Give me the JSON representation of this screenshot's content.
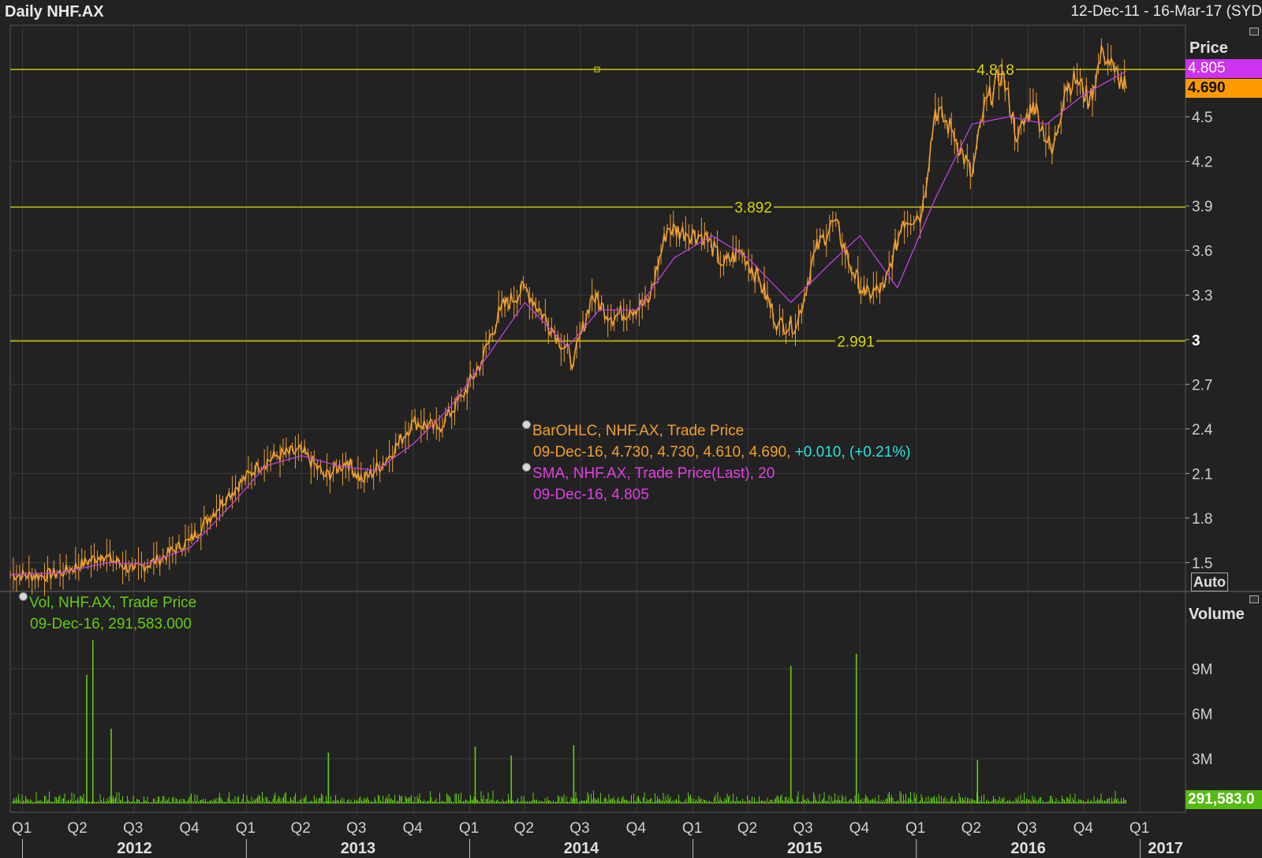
{
  "header": {
    "title": "Daily NHF.AX",
    "date_range": "12-Dec-11 - 16-Mar-17 (SYD"
  },
  "price_panel": {
    "axis_title": "Price",
    "auto_label": "Auto",
    "last_sma": "4.805",
    "last_price": "4.690",
    "y_ticks": [
      "4.5",
      "4.2",
      "3.9",
      "3.6",
      "3.3",
      "3",
      "2.7",
      "2.4",
      "2.1",
      "1.8",
      "1.5"
    ],
    "levels": [
      {
        "value": 4.818,
        "label": "4.818"
      },
      {
        "value": 3.892,
        "label": "3.892"
      },
      {
        "value": 2.991,
        "label": "2.991"
      }
    ],
    "legend": {
      "ohlc_name": "BarOHLC, NHF.AX, Trade Price",
      "ohlc_values": "09-Dec-16, 4.730, 4.730, 4.610, 4.690,",
      "ohlc_change": "+0.010, (+0.21%)",
      "sma_name": "SMA, NHF.AX, Trade Price(Last),  20",
      "sma_values": "09-Dec-16, 4.805"
    },
    "colors": {
      "price": "#f0a030",
      "sma": "#c040e0",
      "level": "#d8d800"
    }
  },
  "volume_panel": {
    "axis_title": "Volume",
    "last_volume": "291,583.0",
    "y_ticks": [
      "9M",
      "6M",
      "3M"
    ],
    "legend": {
      "name": "Vol, NHF.AX, Trade Price",
      "values": "09-Dec-16, 291,583.000"
    },
    "color": "#66cc11"
  },
  "x_axis": {
    "quarters": [
      "Q1",
      "Q2",
      "Q3",
      "Q4",
      "Q1",
      "Q2",
      "Q3",
      "Q4",
      "Q1",
      "Q2",
      "Q3",
      "Q4",
      "Q1",
      "Q2",
      "Q3",
      "Q4",
      "Q1",
      "Q2",
      "Q3",
      "Q4",
      "Q1"
    ],
    "years": [
      "2012",
      "2013",
      "2014",
      "2015",
      "2016",
      "2017"
    ]
  },
  "chart_data": [
    {
      "type": "line",
      "title": "Daily NHF.AX",
      "ylabel": "Price",
      "ylim": [
        1.35,
        5.15
      ],
      "grid": true,
      "series": [
        {
          "name": "BarOHLC, NHF.AX, Trade Price",
          "x": [
            "2011-12-12",
            "2012-02-01",
            "2012-03-10",
            "2012-05-10",
            "2012-07-01",
            "2012-08-10",
            "2012-10-01",
            "2012-12-01",
            "2013-01-20",
            "2013-02-20",
            "2013-04-01",
            "2013-05-10",
            "2013-06-15",
            "2013-07-10",
            "2013-08-20",
            "2013-10-01",
            "2013-11-10",
            "2013-12-20",
            "2014-01-20",
            "2014-02-20",
            "2014-04-01",
            "2014-05-20",
            "2014-06-20",
            "2014-07-20",
            "2014-08-20",
            "2014-09-20",
            "2014-10-20",
            "2014-11-20",
            "2014-12-20",
            "2015-01-20",
            "2015-02-20",
            "2015-03-20",
            "2015-04-20",
            "2015-05-20",
            "2015-06-20",
            "2015-07-20",
            "2015-08-20",
            "2015-09-20",
            "2015-10-10",
            "2015-11-10",
            "2015-12-10",
            "2016-01-10",
            "2016-02-01",
            "2016-03-01",
            "2016-04-01",
            "2016-04-20",
            "2016-05-20",
            "2016-06-15",
            "2016-07-10",
            "2016-08-10",
            "2016-09-01",
            "2016-09-20",
            "2016-10-10",
            "2016-11-01",
            "2016-11-20",
            "2016-12-09"
          ],
          "y": [
            1.42,
            1.41,
            1.44,
            1.55,
            1.45,
            1.52,
            1.65,
            1.95,
            2.15,
            2.22,
            2.25,
            2.08,
            2.18,
            2.05,
            2.2,
            2.45,
            2.4,
            2.62,
            2.85,
            3.2,
            3.35,
            3.05,
            2.85,
            3.3,
            3.15,
            3.2,
            3.25,
            3.75,
            3.72,
            3.7,
            3.5,
            3.6,
            3.4,
            3.1,
            3.1,
            3.6,
            3.8,
            3.45,
            3.3,
            3.35,
            3.8,
            3.85,
            4.55,
            4.4,
            4.1,
            4.55,
            4.8,
            4.35,
            4.6,
            4.25,
            4.7,
            4.75,
            4.6,
            4.95,
            4.8,
            4.69
          ]
        },
        {
          "name": "SMA, NHF.AX, Trade Price(Last),  20",
          "x": [
            "2011-12-12",
            "2012-03-01",
            "2012-05-20",
            "2012-07-20",
            "2012-10-01",
            "2012-12-10",
            "2013-02-01",
            "2013-04-01",
            "2013-06-01",
            "2013-08-01",
            "2013-10-01",
            "2013-12-01",
            "2014-02-01",
            "2014-04-01",
            "2014-06-10",
            "2014-08-01",
            "2014-10-01",
            "2014-12-01",
            "2015-02-01",
            "2015-04-01",
            "2015-06-10",
            "2015-08-10",
            "2015-10-01",
            "2015-12-01",
            "2016-02-01",
            "2016-04-01",
            "2016-06-01",
            "2016-08-01",
            "2016-10-01",
            "2016-12-09"
          ],
          "y": [
            1.42,
            1.43,
            1.5,
            1.49,
            1.6,
            1.9,
            2.15,
            2.22,
            2.15,
            2.12,
            2.3,
            2.55,
            2.9,
            3.25,
            2.95,
            3.2,
            3.2,
            3.55,
            3.7,
            3.55,
            3.25,
            3.5,
            3.7,
            3.35,
            3.95,
            4.45,
            4.5,
            4.45,
            4.65,
            4.805
          ]
        }
      ]
    },
    {
      "type": "bar",
      "title": "Volume",
      "ylabel": "Volume",
      "ylim": [
        0,
        11000000
      ],
      "series": [
        {
          "name": "Vol, NHF.AX, Trade Price",
          "spikes": [
            {
              "date": "2012-04-15",
              "value": 8600000
            },
            {
              "date": "2012-04-25",
              "value": 10900000
            },
            {
              "date": "2012-05-25",
              "value": 5000000
            },
            {
              "date": "2013-05-15",
              "value": 3400000
            },
            {
              "date": "2014-01-10",
              "value": 3800000
            },
            {
              "date": "2014-03-10",
              "value": 3200000
            },
            {
              "date": "2014-06-20",
              "value": 3900000
            },
            {
              "date": "2015-06-10",
              "value": 9200000
            },
            {
              "date": "2015-09-25",
              "value": 10000000
            },
            {
              "date": "2016-04-10",
              "value": 2900000
            }
          ],
          "typical_value": 300000,
          "last": {
            "date": "2016-12-09",
            "value": 291583
          }
        }
      ]
    }
  ]
}
